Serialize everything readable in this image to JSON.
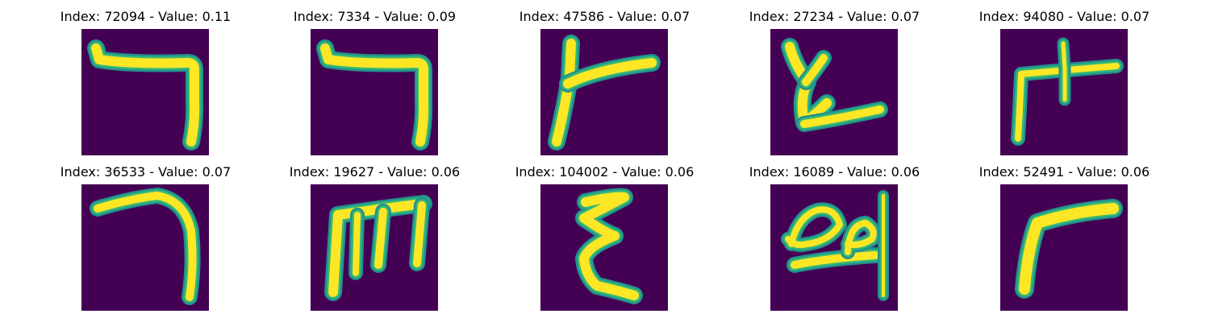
{
  "chart_data": {
    "type": "image-grid",
    "grid_rows": 2,
    "grid_cols": 5,
    "colormap": "viridis",
    "axes_visible": false,
    "colors": {
      "background": "#440154",
      "stroke": "#fde725",
      "stroke_edge": "#35b779",
      "stroke_mid": "#21918c"
    },
    "panels": [
      {
        "title": "Index: 72094 - Value: 0.11",
        "index": 72094,
        "value": 0.11,
        "glyph": "hook-down-right"
      },
      {
        "title": "Index: 7334 - Value: 0.09",
        "index": 7334,
        "value": 0.09,
        "glyph": "hook-down-right"
      },
      {
        "title": "Index: 47586 - Value: 0.07",
        "index": 47586,
        "value": 0.07,
        "glyph": "y-branch"
      },
      {
        "title": "Index: 27234 - Value: 0.07",
        "index": 27234,
        "value": 0.07,
        "glyph": "zigzag-stroke"
      },
      {
        "title": "Index: 94080 - Value: 0.07",
        "index": 94080,
        "value": 0.07,
        "glyph": "cross-stroke"
      },
      {
        "title": "Index: 36533 - Value: 0.07",
        "index": 36533,
        "value": 0.07,
        "glyph": "curve-hook"
      },
      {
        "title": "Index: 19627 - Value: 0.06",
        "index": 19627,
        "value": 0.06,
        "glyph": "m-shape"
      },
      {
        "title": "Index: 104002 - Value: 0.06",
        "index": 104002,
        "value": 0.06,
        "glyph": "epsilon-shape"
      },
      {
        "title": "Index: 16089 - Value: 0.06",
        "index": 16089,
        "value": 0.06,
        "glyph": "loop-scribble"
      },
      {
        "title": "Index: 52491 - Value: 0.06",
        "index": 52491,
        "value": 0.06,
        "glyph": "r-shape"
      }
    ]
  }
}
